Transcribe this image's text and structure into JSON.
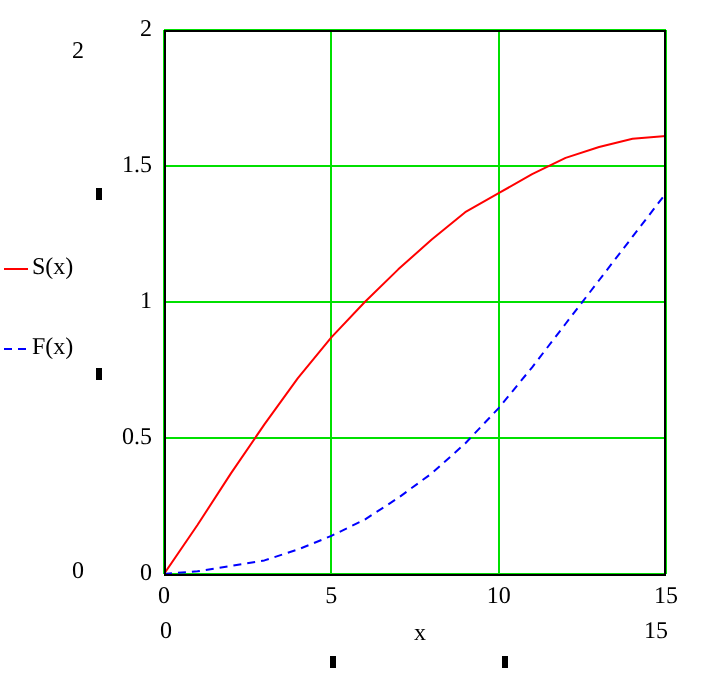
{
  "chart_data": {
    "type": "line",
    "xlabel": "x",
    "x": [
      0,
      1,
      2,
      3,
      4,
      5,
      6,
      7,
      8,
      9,
      10,
      11,
      12,
      13,
      14,
      15
    ],
    "series": [
      {
        "name": "S(x)",
        "color": "#ff0000",
        "line_style": "solid",
        "values": [
          0,
          0.18,
          0.37,
          0.55,
          0.72,
          0.87,
          1.0,
          1.12,
          1.23,
          1.33,
          1.4,
          1.47,
          1.53,
          1.57,
          1.6,
          1.61
        ]
      },
      {
        "name": "F(x)",
        "color": "#0000ff",
        "line_style": "dashed",
        "values": [
          0,
          0.01,
          0.03,
          0.05,
          0.09,
          0.14,
          0.2,
          0.28,
          0.37,
          0.48,
          0.61,
          0.76,
          0.92,
          1.08,
          1.24,
          1.4
        ]
      }
    ],
    "xlim": [
      0,
      15
    ],
    "xticks": [
      0,
      5,
      10,
      15
    ],
    "ylim": [
      0,
      2
    ],
    "yticks": [
      0,
      0.5,
      1,
      1.5,
      2
    ],
    "grid": true,
    "legend": "left",
    "marker": "none",
    "annotations": [
      "2",
      "0",
      "0",
      "15"
    ]
  }
}
